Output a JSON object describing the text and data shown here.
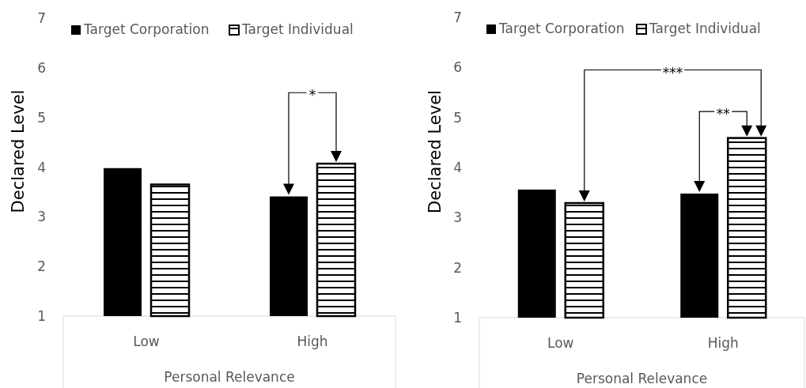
{
  "chart_data": [
    {
      "type": "bar",
      "ylabel": "Declared Level",
      "xlabel": "Personal Relevance",
      "categories": [
        "Low",
        "High"
      ],
      "series": [
        {
          "name": "Target Corporation",
          "color": "#000000",
          "values": [
            3.98,
            3.41
          ]
        },
        {
          "name": "Target Individual",
          "color": "#000000",
          "values": [
            3.65,
            4.07
          ]
        }
      ],
      "ylim": [
        1,
        7
      ],
      "yticks": [
        1,
        2,
        3,
        4,
        5,
        6,
        7
      ],
      "legend": "top",
      "annotations": [
        "*"
      ]
    },
    {
      "type": "bar",
      "ylabel": "Declared Level",
      "xlabel": "Personal Relevance",
      "categories": [
        "Low",
        "High"
      ],
      "series": [
        {
          "name": "Target Corporation",
          "color": "#000000",
          "values": [
            3.56,
            3.48
          ]
        },
        {
          "name": "Target Individual",
          "color": "#000000",
          "values": [
            3.29,
            4.59
          ]
        }
      ],
      "ylim": [
        1,
        7
      ],
      "yticks": [
        1,
        2,
        3,
        4,
        5,
        6,
        7
      ],
      "legend": "top",
      "annotations": [
        "***",
        "**"
      ]
    }
  ]
}
